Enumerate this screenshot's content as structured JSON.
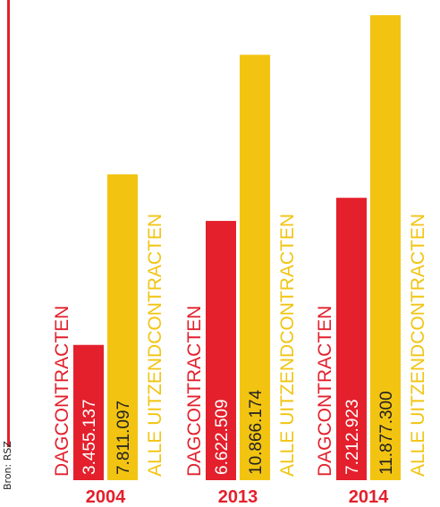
{
  "source": "Bron: RSZ",
  "colors": {
    "accent": "#e3202c",
    "dag": "#e3202c",
    "uitzend": "#f2c411",
    "value_text": "#222222",
    "year_text": "#e3202c"
  },
  "chart_data": {
    "type": "bar",
    "title": "",
    "xlabel": "",
    "ylabel": "",
    "categories": [
      "2004",
      "2013",
      "2014"
    ],
    "series": [
      {
        "name": "DAGCONTRACTEN",
        "values": [
          3455137,
          6622509,
          7212923
        ],
        "labels": [
          "3.455.137",
          "6.622.509",
          "7.212.923"
        ]
      },
      {
        "name": "ALLE UITZENDCONTRACTEN",
        "values": [
          7811097,
          10866174,
          11877300
        ],
        "labels": [
          "7.811.097",
          "10.866.174",
          "11.877.300"
        ]
      }
    ],
    "ylim": [
      0,
      11877300
    ],
    "grid": false,
    "legend": "none"
  }
}
